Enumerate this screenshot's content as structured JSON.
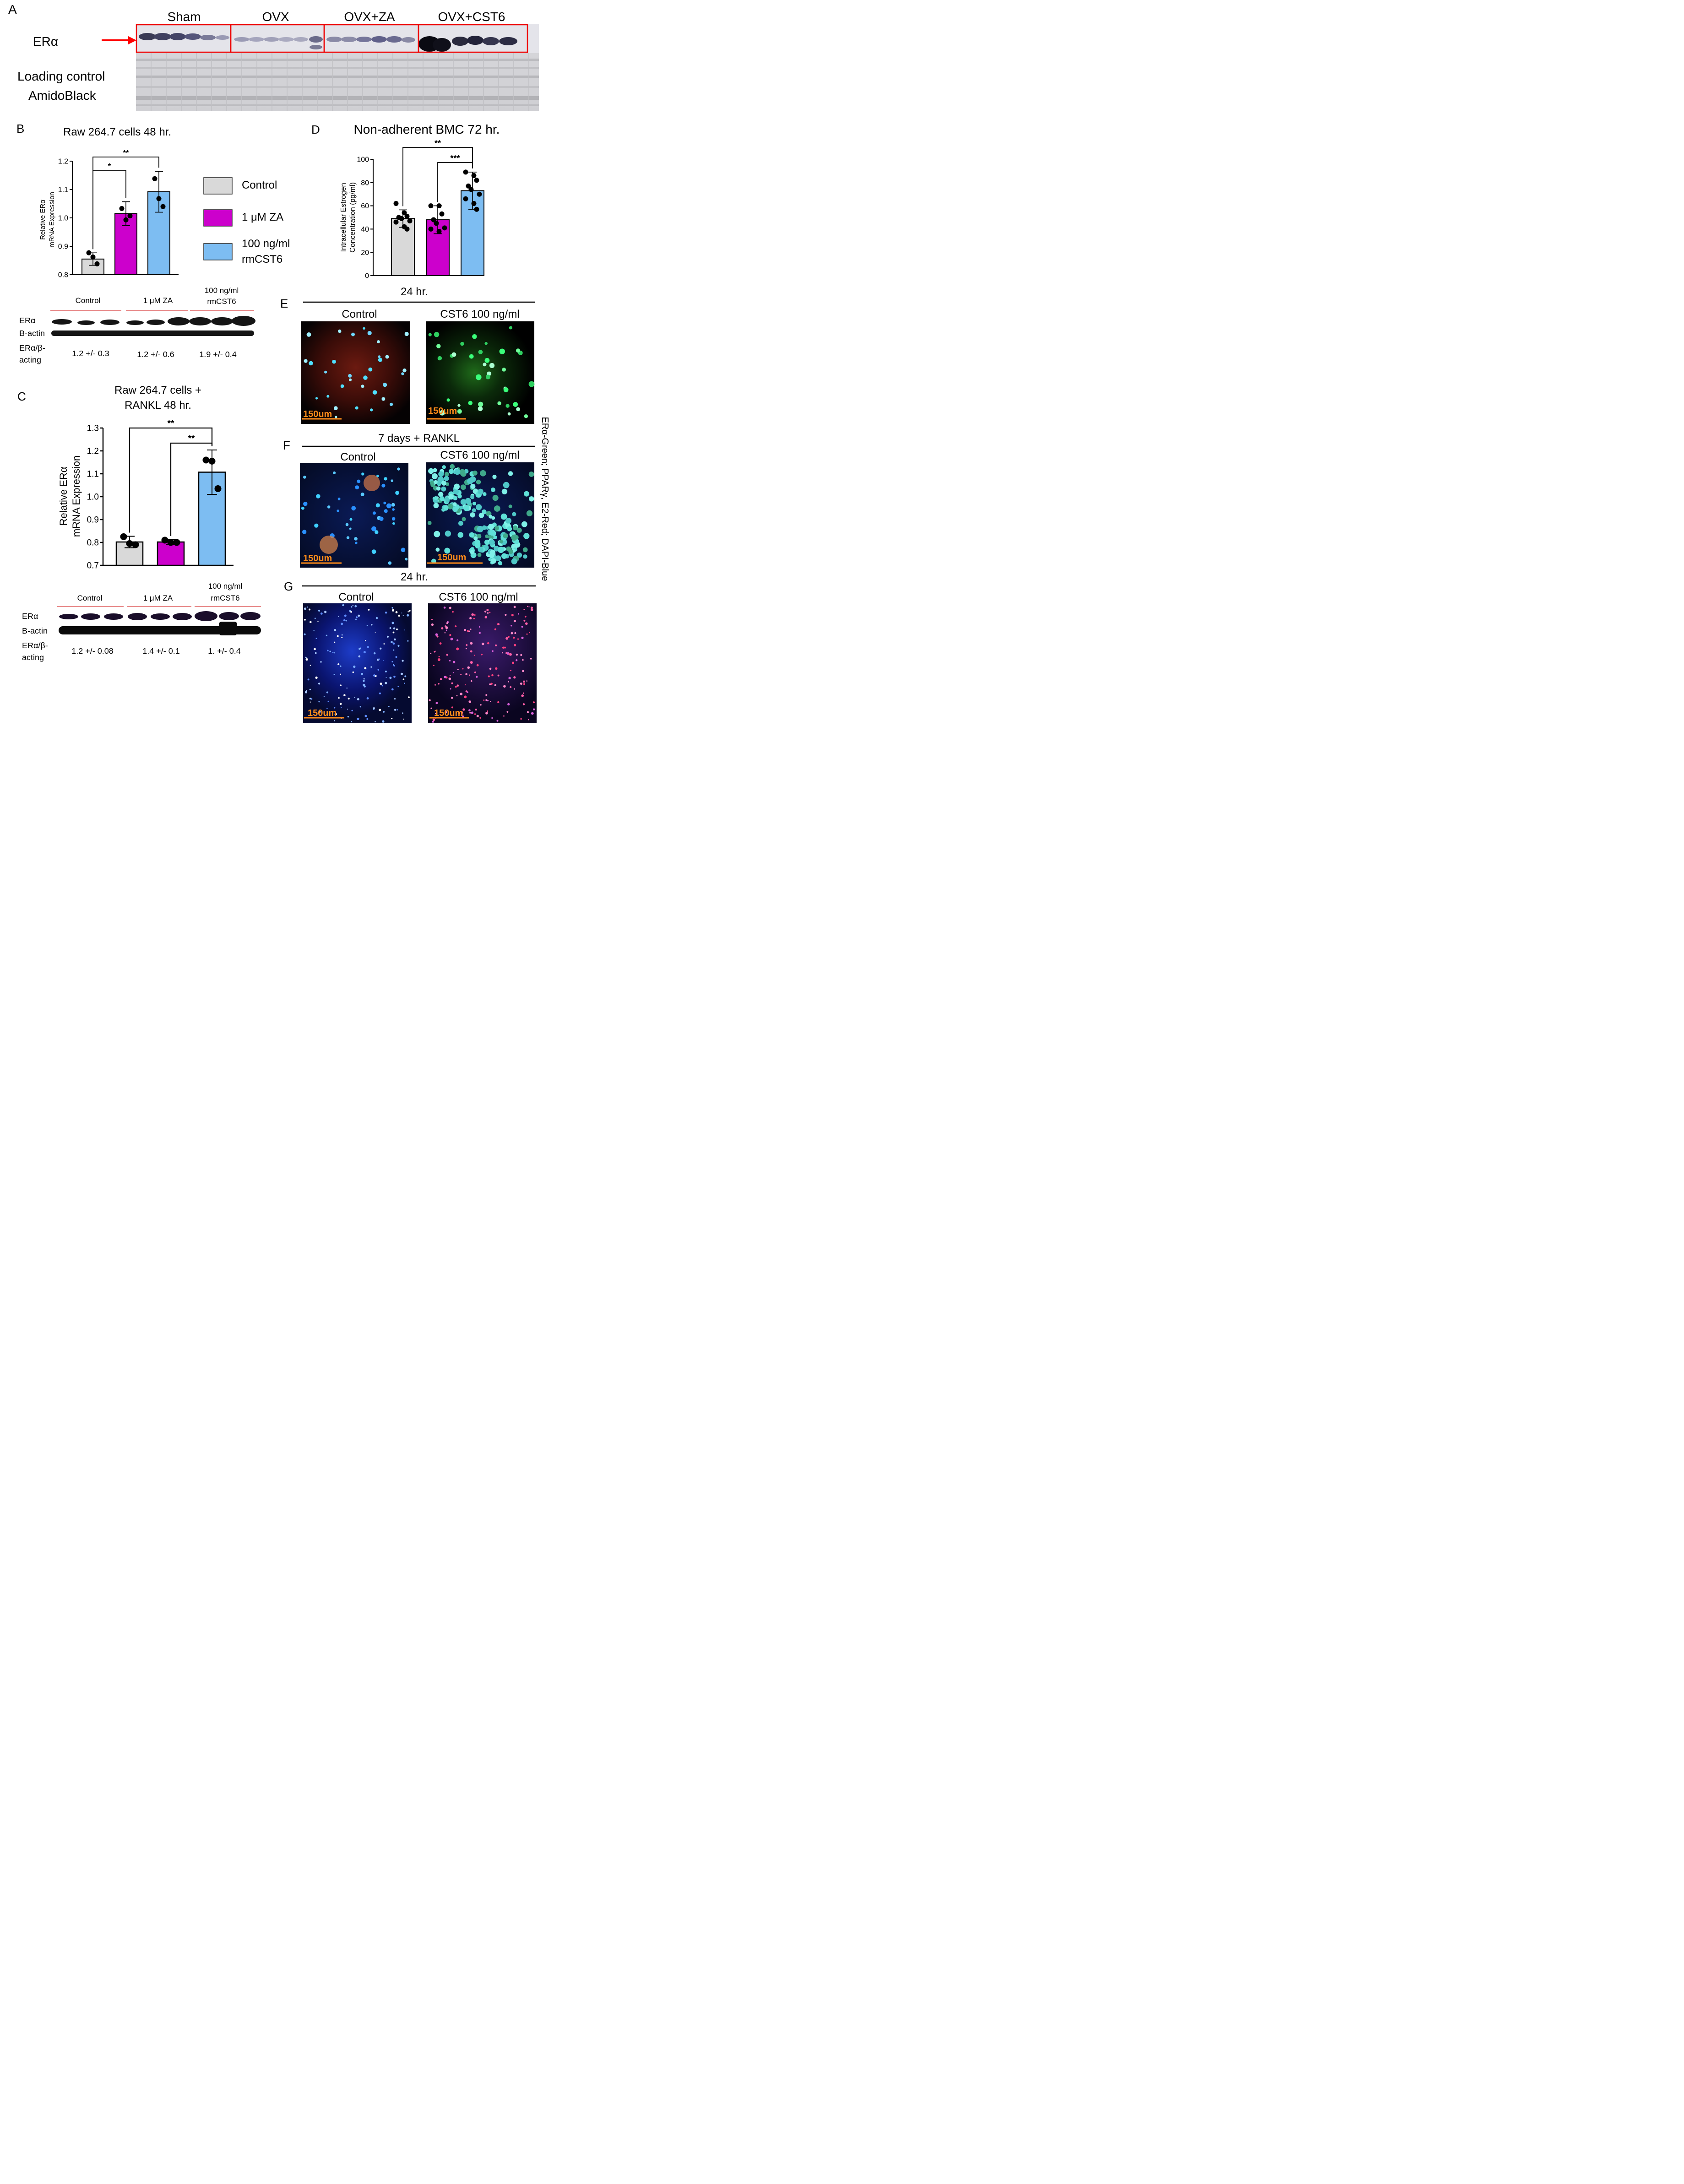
{
  "panel_letters": {
    "a": "A",
    "b": "B",
    "c": "C",
    "d": "D",
    "e": "E",
    "f": "F",
    "g": "G"
  },
  "panel_a": {
    "groups": [
      "Sham",
      "OVX",
      "OVX+ZA",
      "OVX+CST6"
    ],
    "band_label": "ERα",
    "loading_label_1": "Loading control",
    "loading_label_2": "AmidoBlack"
  },
  "panel_b": {
    "title": "Raw 264.7 cells 48 hr.",
    "ylabel_1": "Relative ERα",
    "ylabel_2": "mRNA Expression",
    "wb_groups": [
      "Control",
      "1 μM ZA",
      "100 ng/ml",
      "rmCST6"
    ],
    "wb_rows": [
      "ERα",
      "B-actin",
      "ERα/β-",
      "acting"
    ],
    "wb_ratios": [
      "1.2 +/- 0.3",
      "1.2 +/- 0.6",
      "1.9 +/- 0.4"
    ]
  },
  "legend": {
    "items": [
      "Control",
      "1 μM ZA",
      "100 ng/ml",
      "rmCST6"
    ],
    "colors": [
      "#d9d9d9",
      "#cc00cc",
      "#7dbdf2"
    ]
  },
  "panel_c": {
    "title_1": "Raw 264.7 cells +",
    "title_2": "RANKL 48 hr.",
    "ylabel_1": "Relative ERα",
    "ylabel_2": "mRNA Expression",
    "wb_groups": [
      "Control",
      "1 μM ZA",
      "100 ng/ml",
      "rmCST6"
    ],
    "wb_rows": [
      "ERα",
      "B-actin",
      "ERα/β-",
      "acting"
    ],
    "wb_ratios": [
      "1.2 +/- 0.08",
      "1.4 +/- 0.1",
      "1. +/- 0.4"
    ]
  },
  "panel_d": {
    "title": "Non-adherent BMC 72 hr.",
    "ylabel_1": "Intracellular Estrogen",
    "ylabel_2": "Concentration (pg/ml)"
  },
  "micrographs": {
    "e_header": "24 hr.",
    "f_header": "7 days + RANKL",
    "g_header": "24 hr.",
    "control_label": "Control",
    "cst6_label": "CST6 100 ng/ml",
    "scale_label": "150um",
    "side_label": "ERα-Green; PPARγ, E2-Red; DAPI-Blue"
  },
  "chart_data": [
    {
      "type": "bar",
      "panel": "B",
      "categories": [
        "Control",
        "1 μM ZA",
        "100 ng/ml rmCST6"
      ],
      "values": [
        0.855,
        1.015,
        1.092
      ],
      "errors": [
        0.022,
        0.042,
        0.072
      ],
      "points": [
        [
          0.877,
          0.862,
          0.838
        ],
        [
          1.033,
          0.993,
          1.007
        ],
        [
          1.138,
          1.068,
          1.04
        ]
      ],
      "colors": [
        "#d9d9d9",
        "#cc00cc",
        "#7dbdf2"
      ],
      "ylim": [
        0.8,
        1.2
      ],
      "yticks": [
        "0.8",
        "0.9",
        "1.0",
        "1.1",
        "1.2"
      ],
      "significance": [
        {
          "from": 0,
          "to": 2,
          "label": "**"
        },
        {
          "from": 0,
          "to": 1,
          "label": "*"
        }
      ]
    },
    {
      "type": "bar",
      "panel": "C",
      "categories": [
        "Control",
        "1 μM ZA",
        "100 ng/ml rmCST6"
      ],
      "values": [
        0.802,
        0.802,
        1.107
      ],
      "errors": [
        0.025,
        0.01,
        0.097
      ],
      "points": [
        [
          0.825,
          0.795,
          0.79
        ],
        [
          0.81,
          0.8,
          0.8
        ],
        [
          1.16,
          1.155,
          1.035
        ]
      ],
      "colors": [
        "#d9d9d9",
        "#cc00cc",
        "#7dbdf2"
      ],
      "ylim": [
        0.7,
        1.3
      ],
      "yticks": [
        "0.7",
        "0.8",
        "0.9",
        "1.0",
        "1.1",
        "1.2",
        "1.3"
      ],
      "significance": [
        {
          "from": 0,
          "to": 2,
          "label": "**"
        },
        {
          "from": 1,
          "to": 2,
          "label": "**"
        }
      ]
    },
    {
      "type": "bar",
      "panel": "D",
      "categories": [
        "Control",
        "1 μM ZA",
        "100 ng/ml rmCST6"
      ],
      "values": [
        49,
        48,
        73
      ],
      "errors": [
        7.5,
        12,
        16
      ],
      "points": [
        [
          62,
          54,
          51,
          50,
          49,
          47,
          46,
          42,
          40
        ],
        [
          60,
          60,
          53,
          48,
          45,
          41,
          40,
          38
        ],
        [
          89,
          86,
          82,
          77,
          74,
          70,
          66,
          62,
          57
        ]
      ],
      "colors": [
        "#d9d9d9",
        "#cc00cc",
        "#7dbdf2"
      ],
      "ylim": [
        0,
        100
      ],
      "yticks": [
        "0",
        "20",
        "40",
        "60",
        "80",
        "100"
      ],
      "significance": [
        {
          "from": 0,
          "to": 2,
          "label": "**"
        },
        {
          "from": 1,
          "to": 2,
          "label": "***"
        }
      ]
    }
  ]
}
